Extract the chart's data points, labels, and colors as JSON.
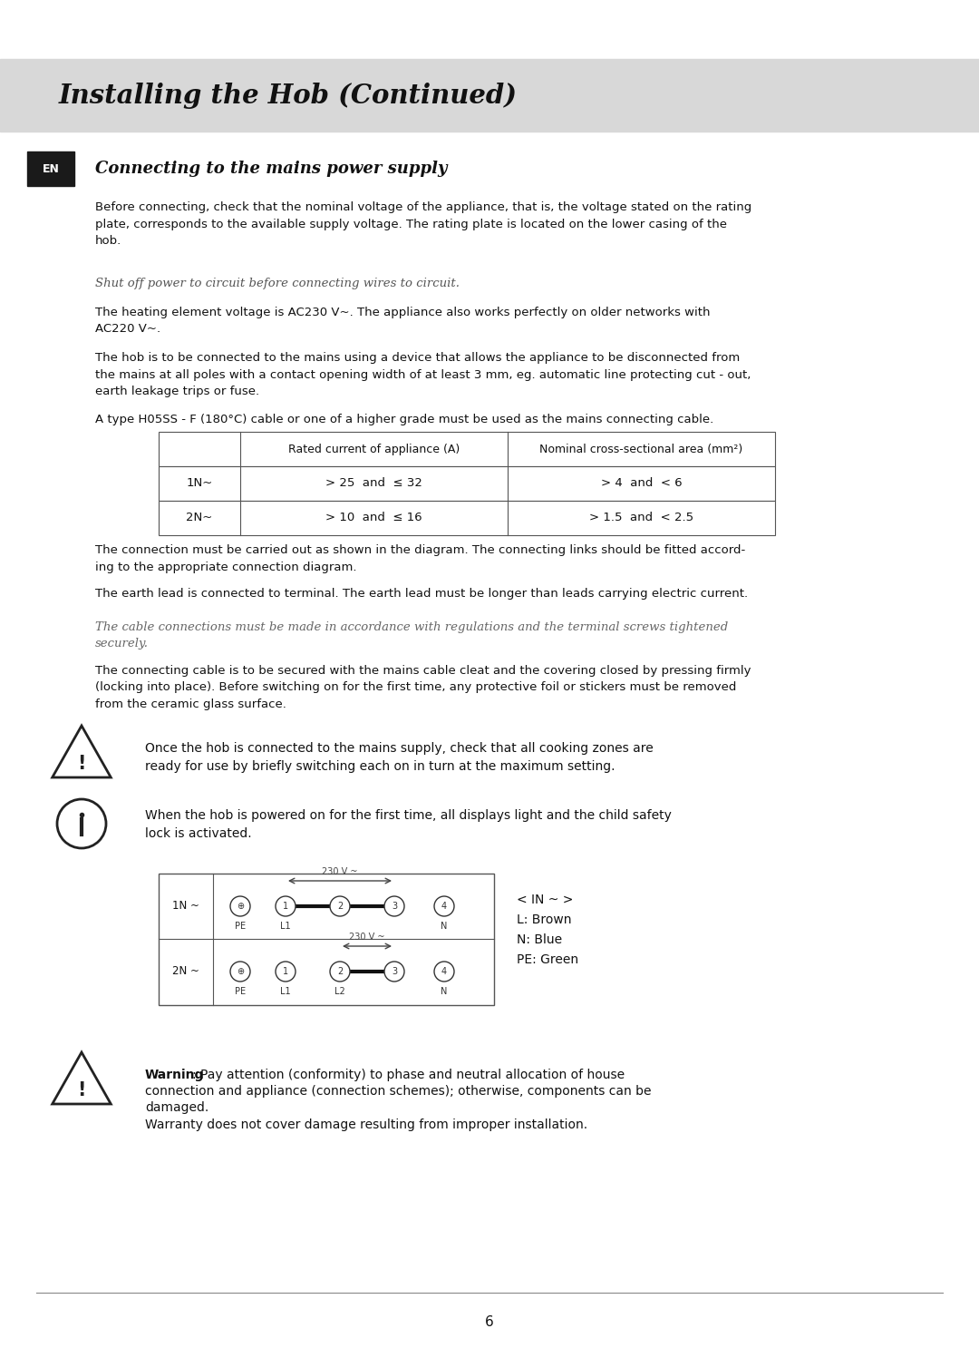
{
  "bg_color": "#ffffff",
  "header_bg": "#d8d8d8",
  "header_text": "Installing the Hob (Continued)",
  "header_fontsize": 21,
  "en_box_bg": "#1a1a1a",
  "en_text": "EN",
  "section_title": "Connecting to the mains power supply",
  "para1": "Before connecting, check that the nominal voltage of the appliance, that is, the voltage stated on the rating\nplate, corresponds to the available supply voltage. The rating plate is located on the lower casing of the\nhob.",
  "italic1": "Shut off power to circuit before connecting wires to circuit.",
  "para2": "The heating element voltage is AC230 V~. The appliance also works perfectly on older networks with\nAC220 V~.",
  "para3": "The hob is to be connected to the mains using a device that allows the appliance to be disconnected from\nthe mains at all poles with a contact opening width of at least 3 mm, eg. automatic line protecting cut - out,\nearth leakage trips or fuse.",
  "para4": "A type H05SS - F (180°C) cable or one of a higher grade must be used as the mains connecting cable.",
  "table_col2": "Rated current of appliance (A)",
  "table_col3": "Nominal cross-sectional area (mm²)",
  "table_row1_c1": "1N~",
  "table_row1_c2": "> 25  and  ≤ 32",
  "table_row1_c3": "> 4  and  < 6",
  "table_row2_c1": "2N~",
  "table_row2_c2": "> 10  and  ≤ 16",
  "table_row2_c3": "> 1.5  and  < 2.5",
  "para5": "The connection must be carried out as shown in the diagram. The connecting links should be fitted accord-\ning to the appropriate connection diagram.",
  "para6": "The earth lead is connected to terminal. The earth lead must be longer than leads carrying electric current.",
  "italic2": "The cable connections must be made in accordance with regulations and the terminal screws tightened\nsecurely.",
  "para7": "The connecting cable is to be secured with the mains cable cleat and the covering closed by pressing firmly\n(locking into place). Before switching on for the first time, any protective foil or stickers must be removed\nfrom the ceramic glass surface.",
  "warn1": "Once the hob is connected to the mains supply, check that all cooking zones are\nready for use by briefly switching each on in turn at the maximum setting.",
  "info1": "When the hob is powered on for the first time, all displays light and the child safety\nlock is activated.",
  "page_num": "6",
  "font_size_body": 9.5
}
